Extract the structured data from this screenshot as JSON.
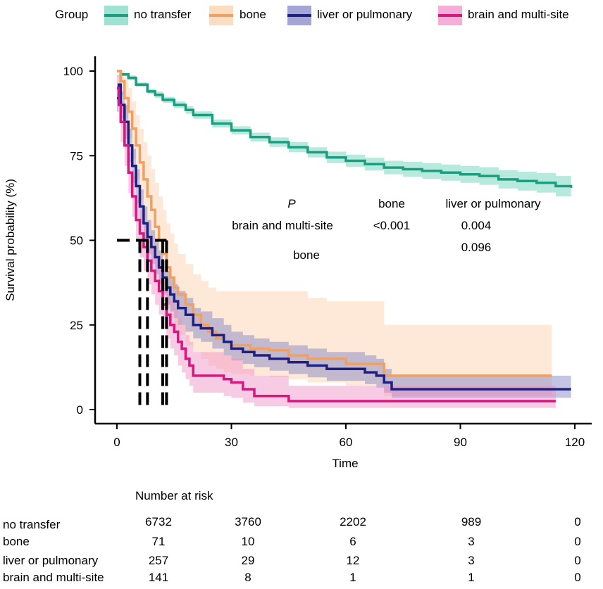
{
  "chart_data": {
    "type": "line",
    "subtype": "kaplan-meier",
    "title": "",
    "xlabel": "Time",
    "ylabel": "Survival probability (%)",
    "xlim": [
      0,
      120
    ],
    "ylim": [
      0,
      100
    ],
    "xticks": [
      0,
      30,
      60,
      90,
      120
    ],
    "yticks": [
      0,
      25,
      50,
      75,
      100
    ],
    "grid": false,
    "legend": {
      "title": "Group",
      "position": "top",
      "entries": [
        "no transfer",
        "bone",
        "liver or pulmonary",
        "brain and multi-site"
      ]
    },
    "series": [
      {
        "name": "no transfer",
        "color": "#1a9e7f",
        "band_color": "#5fcfb2",
        "x": [
          0,
          1,
          3,
          5,
          8,
          10,
          12,
          15,
          18,
          20,
          25,
          30,
          35,
          40,
          45,
          50,
          55,
          60,
          65,
          70,
          75,
          80,
          85,
          90,
          95,
          100,
          105,
          110,
          115,
          119
        ],
        "y": [
          100,
          99,
          98,
          96,
          94,
          93,
          91.5,
          90,
          88.5,
          87,
          84.5,
          82.5,
          80.5,
          79,
          77.5,
          76,
          74.5,
          73.5,
          72.5,
          71.5,
          71,
          70.5,
          70,
          69.5,
          69,
          68,
          67.5,
          67,
          66,
          65.5
        ],
        "lower": [
          100,
          98.5,
          97.3,
          95.3,
          93.2,
          92.1,
          90.6,
          89,
          87.4,
          85.9,
          83.3,
          81.3,
          79.2,
          77.6,
          76,
          74.5,
          72.8,
          71.7,
          70.6,
          69.5,
          68.8,
          68.2,
          67.6,
          67,
          66.4,
          65.3,
          64.7,
          64.1,
          63,
          62.4
        ],
        "upper": [
          100,
          99.5,
          98.7,
          96.7,
          94.8,
          93.9,
          92.4,
          91,
          89.6,
          88.1,
          85.7,
          83.7,
          81.8,
          80.4,
          79,
          77.5,
          76.2,
          75.3,
          74.4,
          73.5,
          73.2,
          72.8,
          72.4,
          72,
          71.6,
          70.7,
          70.3,
          69.9,
          69,
          68.6
        ]
      },
      {
        "name": "bone",
        "color": "#f0a060",
        "band_color": "#fccfa8",
        "x": [
          0,
          1,
          2,
          3,
          4,
          5,
          6,
          7,
          8,
          9,
          10,
          11,
          12,
          13,
          14,
          15,
          16,
          18,
          20,
          22,
          24,
          26,
          28,
          30,
          35,
          40,
          45,
          50,
          55,
          60,
          65,
          70,
          75,
          80,
          90,
          100,
          110,
          114
        ],
        "y": [
          100,
          97,
          92,
          88,
          83,
          78,
          73,
          68,
          63,
          59,
          54,
          50,
          46,
          42,
          39,
          36,
          34,
          31,
          28,
          25,
          23,
          21,
          20,
          19,
          18,
          17.5,
          16,
          15,
          15,
          13.5,
          13.5,
          10,
          10,
          10,
          10,
          10,
          10,
          10
        ],
        "lower": [
          100,
          93,
          86,
          80,
          74,
          68,
          62,
          56,
          51,
          46,
          42,
          38,
          34,
          30,
          27,
          24,
          22,
          19,
          17,
          15,
          13,
          12,
          11,
          10.5,
          10,
          9.5,
          9,
          8,
          8,
          7,
          7,
          4,
          4,
          4,
          4,
          4,
          4,
          4
        ],
        "upper": [
          100,
          100,
          98,
          95,
          91,
          87,
          83,
          79,
          75,
          71,
          67,
          63,
          59,
          55,
          52,
          49,
          46,
          43,
          40,
          38,
          36,
          35,
          35,
          35,
          35,
          35,
          35,
          33,
          32,
          32,
          32,
          25,
          25,
          25,
          25,
          25,
          25,
          25
        ]
      },
      {
        "name": "liver or pulmonary",
        "color": "#1f1f80",
        "band_color": "#7c7fc6",
        "x": [
          0,
          0.5,
          1,
          2,
          3,
          4,
          5,
          6,
          7,
          8,
          9,
          10,
          11,
          12,
          13,
          14,
          15,
          16,
          18,
          20,
          22,
          25,
          28,
          30,
          33,
          36,
          40,
          45,
          50,
          55,
          60,
          65,
          68,
          70,
          72,
          80,
          90,
          100,
          110,
          119
        ],
        "y": [
          92,
          96,
          90,
          85,
          78,
          72,
          66,
          60,
          55,
          51,
          48,
          45,
          42,
          39,
          36,
          34,
          32,
          30,
          28,
          25,
          24,
          22,
          20,
          18,
          17,
          16,
          15,
          14,
          13,
          12,
          12,
          11,
          10,
          8,
          6,
          6,
          6,
          6,
          6,
          6
        ],
        "lower": [
          88,
          93,
          86,
          80,
          73,
          67,
          61,
          55,
          50,
          46,
          43,
          40,
          37,
          34,
          31,
          29,
          27,
          25,
          23,
          21,
          20,
          18,
          16,
          14.5,
          13.5,
          12.5,
          11.5,
          10.5,
          9.5,
          8.5,
          8.5,
          7.5,
          6.5,
          5,
          3.5,
          3.5,
          3.5,
          3.5,
          3.5,
          3.5
        ],
        "upper": [
          95,
          99,
          94,
          90,
          83,
          77,
          71,
          65,
          60,
          56,
          53,
          50,
          47,
          44,
          41,
          39,
          37,
          35,
          33,
          30,
          29,
          27,
          25,
          23,
          22,
          21,
          20,
          19,
          18,
          17,
          17,
          16,
          15,
          12,
          10,
          10,
          10,
          10,
          10,
          10
        ]
      },
      {
        "name": "brain and multi-site",
        "color": "#d6177f",
        "band_color": "#f08cc6",
        "x": [
          0,
          0.5,
          1,
          2,
          3,
          4,
          5,
          6,
          7,
          8,
          9,
          10,
          11,
          12,
          13,
          14,
          15,
          16,
          17,
          18,
          19,
          20,
          22,
          25,
          28,
          30,
          33,
          36,
          40,
          45,
          50,
          60,
          70,
          80,
          90,
          100,
          110,
          115
        ],
        "y": [
          95,
          90,
          85,
          78,
          70,
          63,
          56,
          52,
          48,
          44,
          41,
          38,
          35,
          31,
          28,
          25,
          23,
          20,
          18,
          15,
          13,
          10,
          10,
          10,
          9,
          8,
          6,
          4,
          4,
          2.5,
          2.5,
          2.5,
          2.5,
          2.5,
          2.5,
          2.5,
          2.5,
          2.5
        ],
        "lower": [
          91,
          85,
          79,
          72,
          64,
          57,
          50,
          45,
          41,
          37,
          34,
          31,
          28,
          24,
          21,
          18,
          16,
          13,
          11,
          9,
          7,
          5,
          5,
          5,
          4,
          3.5,
          2,
          1,
          1,
          0.5,
          0.5,
          0.5,
          0.5,
          0.5,
          0.5,
          0.5,
          0.5,
          0.5
        ],
        "upper": [
          99,
          95,
          91,
          84,
          76,
          69,
          62,
          59,
          55,
          51,
          48,
          45,
          42,
          38,
          35,
          32,
          30,
          27,
          25,
          22,
          20,
          17,
          17,
          17,
          16,
          15,
          12,
          10,
          10,
          7,
          7,
          7,
          7,
          7,
          7,
          7,
          7,
          7
        ]
      }
    ],
    "median_lines": {
      "y": 50,
      "x": [
        6,
        8,
        12,
        13
      ]
    },
    "annotations": {
      "p_label": "P",
      "col_headers": [
        "bone",
        "liver or pulmonary"
      ],
      "rows": [
        {
          "label": "brain and multi-site",
          "values": [
            "<0.001",
            "0.004"
          ]
        },
        {
          "label": "bone",
          "values": [
            "",
            "0.096"
          ]
        }
      ]
    },
    "risk_table": {
      "title": "Number at risk",
      "times": [
        0,
        30,
        60,
        90,
        120
      ],
      "rows": [
        {
          "group": "no transfer",
          "values": [
            "6732",
            "3760",
            "2202",
            "989",
            "0"
          ]
        },
        {
          "group": "bone",
          "values": [
            "71",
            "10",
            "6",
            "3",
            "0"
          ]
        },
        {
          "group": "liver or pulmonary",
          "values": [
            "257",
            "29",
            "12",
            "3",
            "0"
          ]
        },
        {
          "group": "brain and multi-site",
          "values": [
            "141",
            "8",
            "1",
            "1",
            "0"
          ]
        }
      ]
    }
  }
}
